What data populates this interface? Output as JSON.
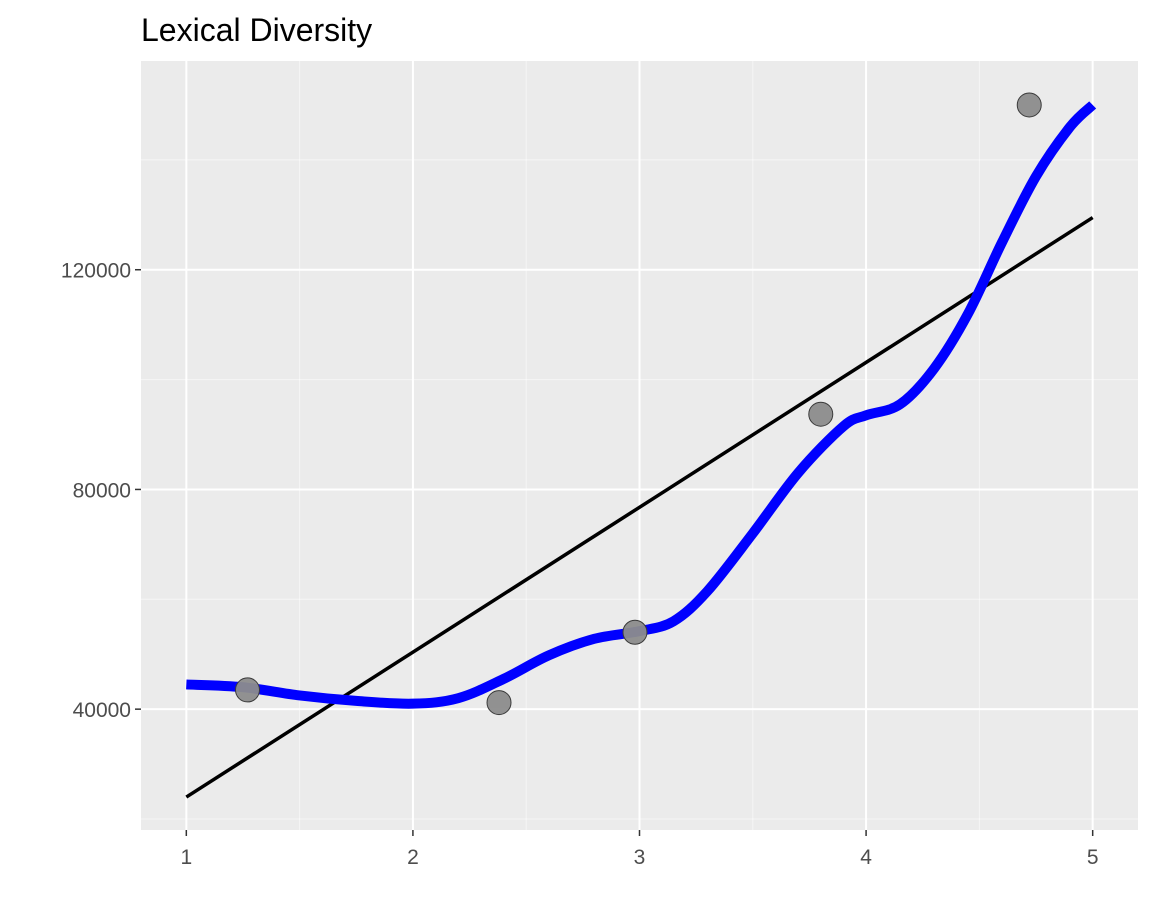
{
  "chart_data": {
    "type": "scatter",
    "title": "Lexical Diversity",
    "xlabel": "",
    "ylabel": "",
    "xlim": [
      0.8,
      5.2
    ],
    "ylim": [
      18000,
      158000
    ],
    "x_ticks": [
      1,
      2,
      3,
      4,
      5
    ],
    "x_tick_labels": [
      "1",
      "2",
      "3",
      "4",
      "5"
    ],
    "y_ticks": [
      40000,
      80000,
      120000
    ],
    "y_tick_labels": [
      "40000",
      "80000",
      "120000"
    ],
    "grid": true,
    "legend": "none",
    "points": {
      "x": [
        1.27,
        2.38,
        2.98,
        3.8,
        4.72
      ],
      "y": [
        43500,
        41200,
        54000,
        93700,
        150000
      ],
      "color": "#8c8c8c"
    },
    "linear_fit": {
      "x": [
        1,
        5
      ],
      "y": [
        24000,
        129500
      ],
      "color": "#000000"
    },
    "smooth_fit": {
      "x": [
        1.0,
        1.25,
        1.5,
        1.75,
        2.0,
        2.2,
        2.4,
        2.6,
        2.8,
        3.0,
        3.15,
        3.3,
        3.5,
        3.7,
        3.9,
        4.0,
        4.15,
        4.3,
        4.45,
        4.6,
        4.75,
        4.9,
        5.0
      ],
      "y": [
        44500,
        44000,
        42500,
        41500,
        41000,
        42000,
        45500,
        49800,
        52800,
        54200,
        56000,
        61500,
        72000,
        83000,
        91500,
        93500,
        95500,
        102000,
        112000,
        125000,
        137000,
        146000,
        150000
      ],
      "color": "#0000ff"
    },
    "colors": {
      "panel_background": "#ebebeb",
      "grid_major": "#ffffff",
      "tick_label": "#4d4d4d",
      "title": "#000000"
    }
  }
}
